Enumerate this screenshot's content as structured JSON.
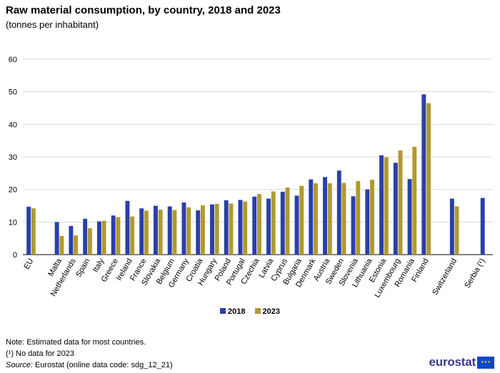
{
  "title": "Raw material consumption, by country, 2018 and 2023",
  "subtitle": "(tonnes per inhabitant)",
  "chart_data": {
    "type": "bar",
    "categories": [
      "EU",
      "Malta",
      "Netherlands",
      "Spain",
      "Italy",
      "Greece",
      "Ireland",
      "France",
      "Slovakia",
      "Belgium",
      "Germany",
      "Croatia",
      "Hungary",
      "Poland",
      "Portugal",
      "Czechia",
      "Latvia",
      "Cyprus",
      "Bulgaria",
      "Denmark",
      "Austria",
      "Sweden",
      "Slovenia",
      "Lithuania",
      "Estonia",
      "Luxembourg",
      "Romania",
      "Finland",
      "Switzerland",
      "Serbia (¹)"
    ],
    "gap_after": [
      "EU",
      "Finland",
      "Switzerland"
    ],
    "series": [
      {
        "name": "2018",
        "color": "#2a3faa",
        "values": [
          14.7,
          10.0,
          8.8,
          11.0,
          10.2,
          12.0,
          16.5,
          14.2,
          15.0,
          14.8,
          16.0,
          13.6,
          15.4,
          16.7,
          16.8,
          17.8,
          17.2,
          19.3,
          18.1,
          23.1,
          23.8,
          25.8,
          17.9,
          20.0,
          30.5,
          28.2,
          23.2,
          49.2,
          17.2,
          17.4
        ]
      },
      {
        "name": "2023",
        "color": "#b09a2e",
        "values": [
          14.2,
          5.7,
          5.9,
          8.1,
          10.4,
          11.5,
          11.7,
          13.5,
          13.8,
          13.7,
          14.5,
          15.1,
          15.6,
          15.7,
          16.3,
          18.6,
          19.4,
          20.6,
          21.1,
          21.9,
          21.9,
          22.0,
          22.6,
          23.0,
          29.9,
          32.0,
          33.1,
          46.5,
          14.8,
          null
        ]
      }
    ],
    "xlabel": "",
    "ylabel": "",
    "ylim": [
      0,
      60
    ],
    "yticks": [
      0,
      10,
      20,
      30,
      40,
      50,
      60
    ],
    "grid": true,
    "legend": "bottom-center"
  },
  "notes": {
    "note": "Note: Estimated data for most countries.",
    "footnote1": "(¹) No data for 2023",
    "source_label": "Source:",
    "source_text": " Eurostat (online data code: sdg_12_21)"
  },
  "logo": {
    "text": "eurostat"
  }
}
